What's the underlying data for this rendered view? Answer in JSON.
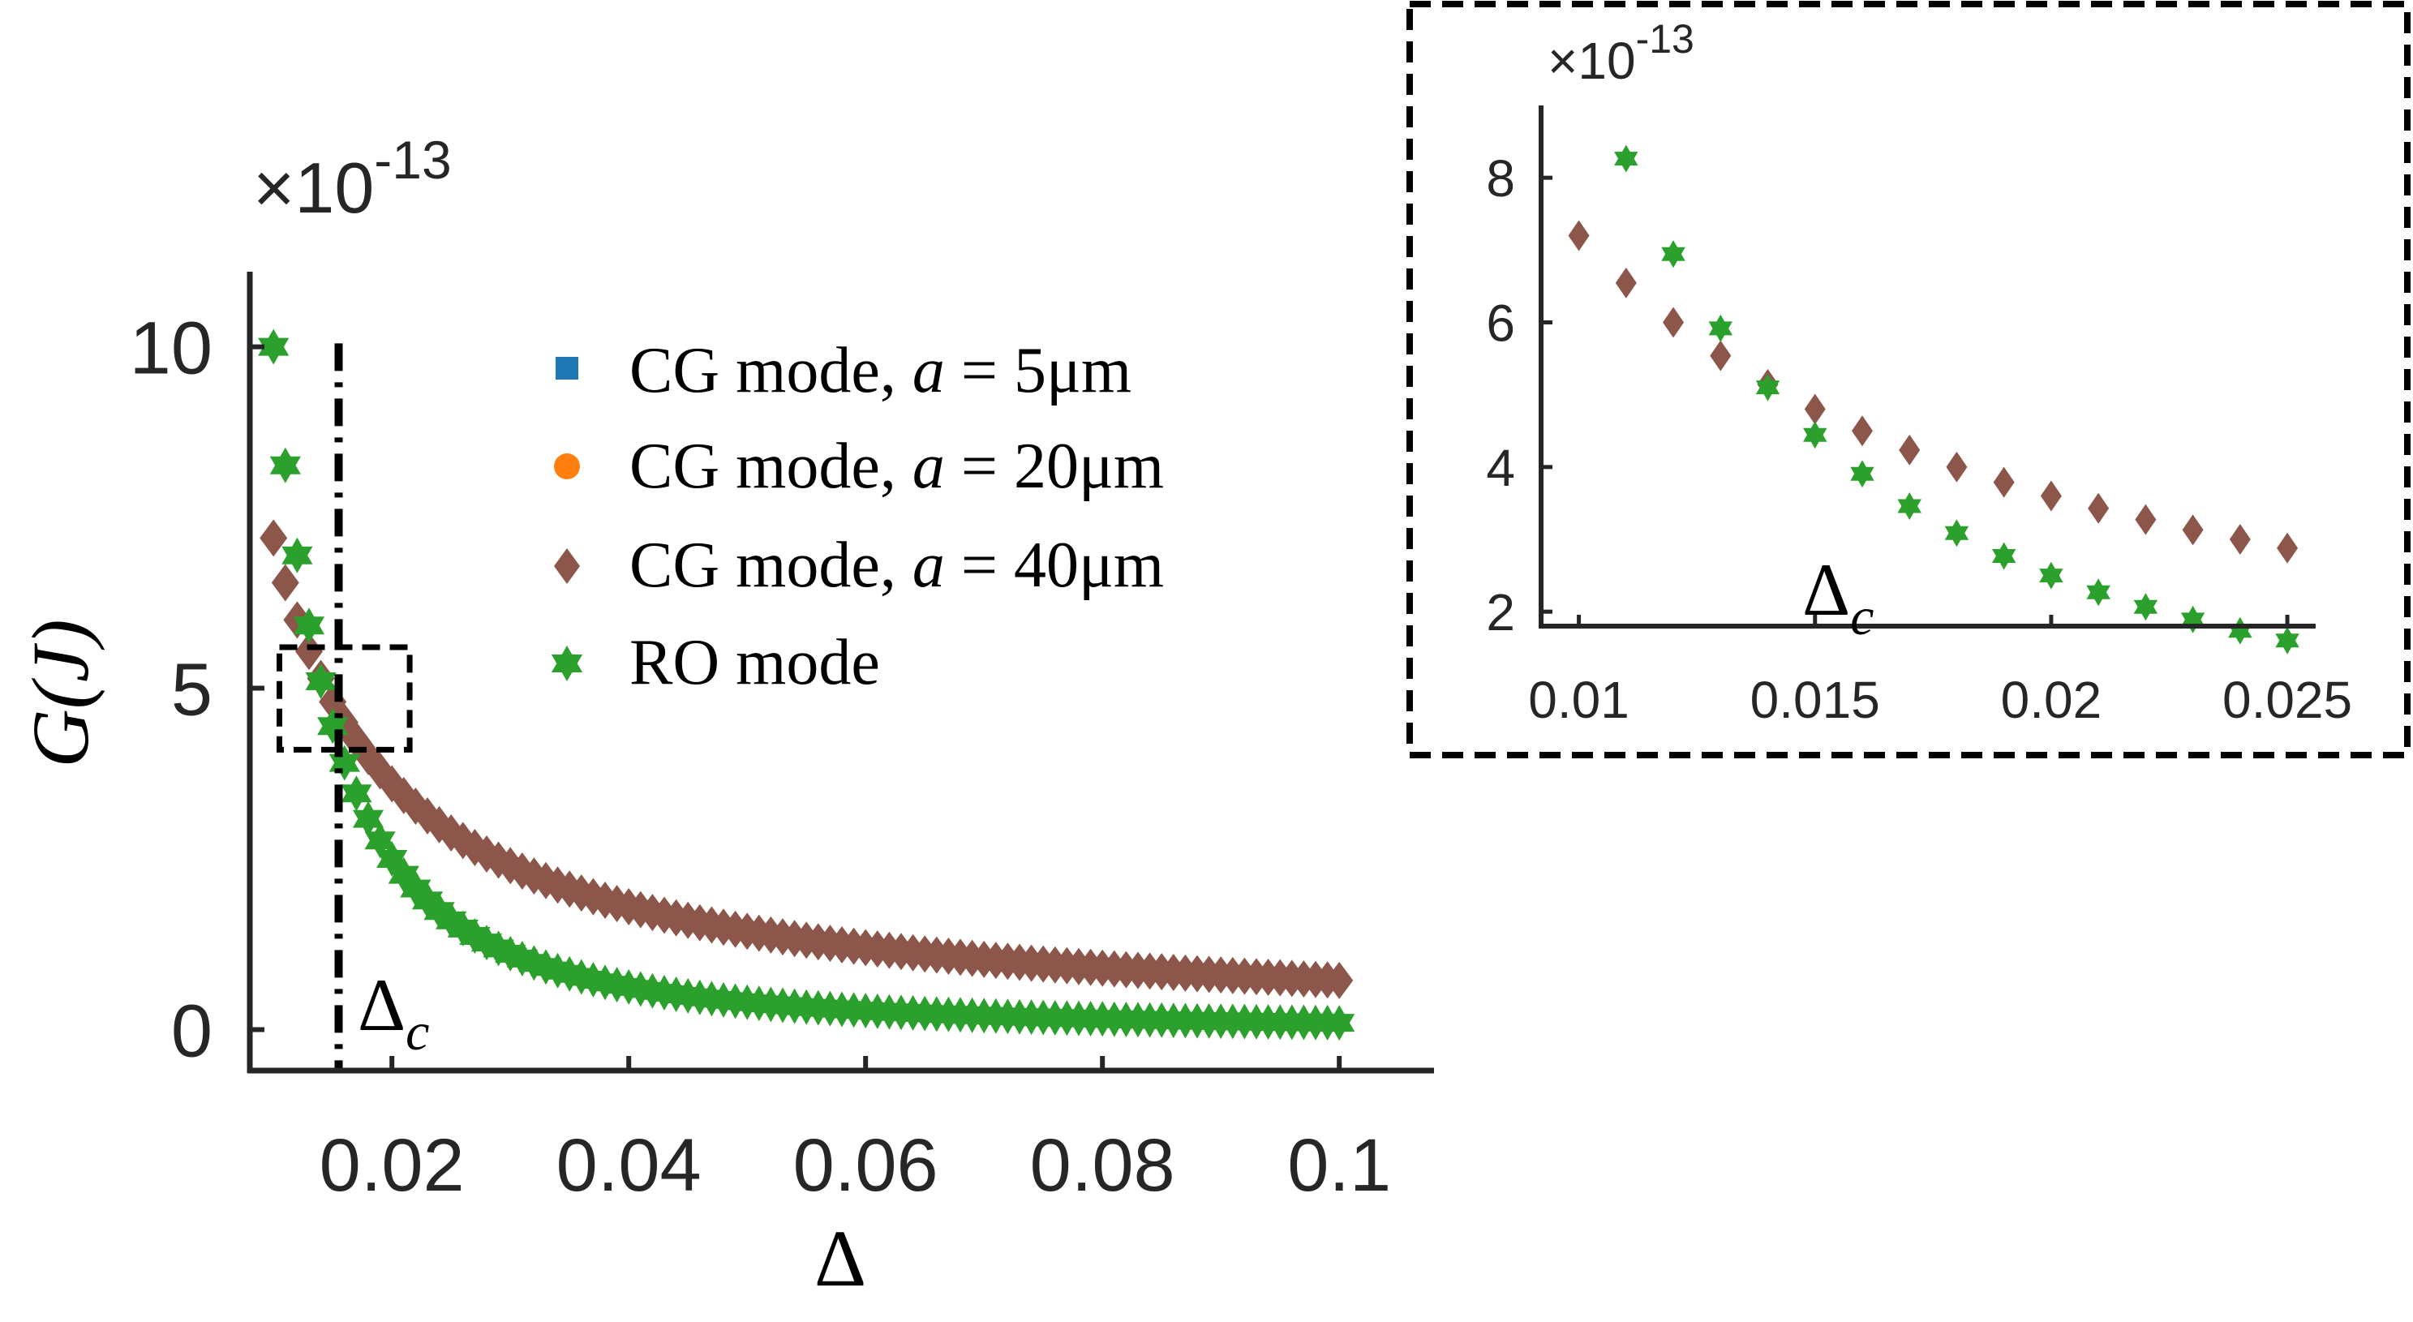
{
  "chart_data": [
    {
      "type": "scatter",
      "name": "main",
      "title": "",
      "xlabel": "Δ",
      "ylabel": "G(J)",
      "multiplier_base": "×10",
      "multiplier_exp": "-13",
      "xlim": [
        0.008,
        0.108
      ],
      "ylim": [
        -0.6,
        11.1
      ],
      "xticks": [
        0.02,
        0.04,
        0.06,
        0.08,
        0.1
      ],
      "xtick_labels": [
        "0.02",
        "0.04",
        "0.06",
        "0.08",
        "0.1"
      ],
      "yticks": [
        0,
        5,
        10
      ],
      "ytick_labels": [
        "0",
        "5",
        "10"
      ],
      "critical_x": 0.0155,
      "critical_label": "Δ",
      "critical_sub": "c",
      "zoom_box": {
        "x": [
          0.0105,
          0.0215
        ],
        "y": [
          4.1,
          5.6
        ]
      },
      "series": [
        {
          "name": "CG mode, a = 5μm",
          "legend_prefix": "CG mode, ",
          "legend_var": "a",
          "legend_value": " = 5μm",
          "marker": "square",
          "color": "#1f77b4",
          "formula": "7.2e-15/x",
          "visible": false
        },
        {
          "name": "CG mode, a = 20μm",
          "legend_prefix": "CG mode, ",
          "legend_var": "a",
          "legend_value": " = 20μm",
          "marker": "circle",
          "color": "#ff7f0e",
          "formula": "7.2e-15/x",
          "visible": false
        },
        {
          "name": "CG mode, a = 40μm",
          "legend_prefix": "CG mode, ",
          "legend_var": "a",
          "legend_value": " = 40μm",
          "marker": "diamond",
          "color": "#8c564b",
          "formula": "7.2e-15/x",
          "visible": true
        },
        {
          "name": "RO mode",
          "legend_prefix": "RO mode",
          "legend_var": "",
          "legend_value": "",
          "marker": "hexagram",
          "color": "#2ca02c",
          "formula": "1e-16/x^2",
          "visible": true
        }
      ],
      "x": [
        0.01,
        0.011,
        0.012,
        0.013,
        0.014,
        0.015,
        0.016,
        0.017,
        0.018,
        0.019,
        0.02,
        0.021,
        0.022,
        0.023,
        0.024,
        0.025,
        0.026,
        0.027,
        0.028,
        0.029,
        0.03,
        0.031,
        0.032,
        0.033,
        0.034,
        0.035,
        0.036,
        0.037,
        0.038,
        0.039,
        0.04,
        0.041,
        0.042,
        0.043,
        0.044,
        0.045,
        0.046,
        0.047,
        0.048,
        0.049,
        0.05,
        0.051,
        0.052,
        0.053,
        0.054,
        0.055,
        0.056,
        0.057,
        0.058,
        0.059,
        0.06,
        0.061,
        0.062,
        0.063,
        0.064,
        0.065,
        0.066,
        0.067,
        0.068,
        0.069,
        0.07,
        0.071,
        0.072,
        0.073,
        0.074,
        0.075,
        0.076,
        0.077,
        0.078,
        0.079,
        0.08,
        0.081,
        0.082,
        0.083,
        0.084,
        0.085,
        0.086,
        0.087,
        0.088,
        0.089,
        0.09,
        0.091,
        0.092,
        0.093,
        0.094,
        0.095,
        0.096,
        0.097,
        0.098,
        0.099,
        0.1
      ]
    },
    {
      "type": "scatter",
      "name": "inset",
      "title": "",
      "xlabel": "",
      "ylabel": "",
      "multiplier_base": "×10",
      "multiplier_exp": "-13",
      "xlim": [
        0.0092,
        0.0256
      ],
      "ylim": [
        1.8,
        9.0
      ],
      "xticks": [
        0.01,
        0.015,
        0.02,
        0.025
      ],
      "xtick_labels": [
        "0.01",
        "0.015",
        "0.02",
        "0.025"
      ],
      "yticks": [
        2,
        4,
        6,
        8
      ],
      "ytick_labels": [
        "2",
        "4",
        "6",
        "8"
      ],
      "critical_label": "Δ",
      "critical_sub": "c",
      "x_cg": [
        0.01,
        0.011,
        0.012,
        0.013,
        0.014,
        0.015,
        0.016,
        0.017,
        0.018,
        0.019,
        0.02,
        0.021,
        0.022,
        0.023,
        0.024,
        0.025
      ],
      "x_ro": [
        0.011,
        0.012,
        0.013,
        0.014,
        0.015,
        0.016,
        0.017,
        0.018,
        0.019,
        0.02,
        0.021,
        0.022,
        0.023,
        0.024,
        0.025
      ]
    }
  ],
  "colors": {
    "axis": "#262626",
    "text": "#000000",
    "cg": "#8c564b",
    "ro": "#2ca02c",
    "cg5": "#1f77b4",
    "cg20": "#ff7f0e"
  }
}
